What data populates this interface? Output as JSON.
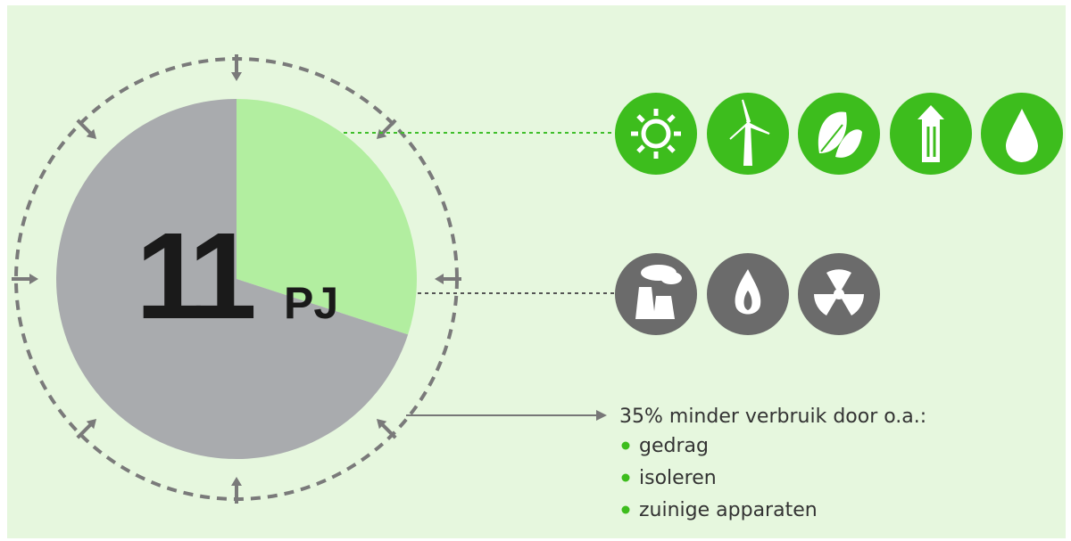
{
  "headline": {
    "value": "11",
    "unit": "PJ"
  },
  "pie": {
    "segments": [
      {
        "value": 30,
        "color": "#b2eea0"
      },
      {
        "value": 70,
        "color": "#a9abae"
      }
    ]
  },
  "note": {
    "title": "35% minder verbruik door o.a.:",
    "items": [
      "gedrag",
      "isoleren",
      "zuinige apparaten"
    ]
  }
}
